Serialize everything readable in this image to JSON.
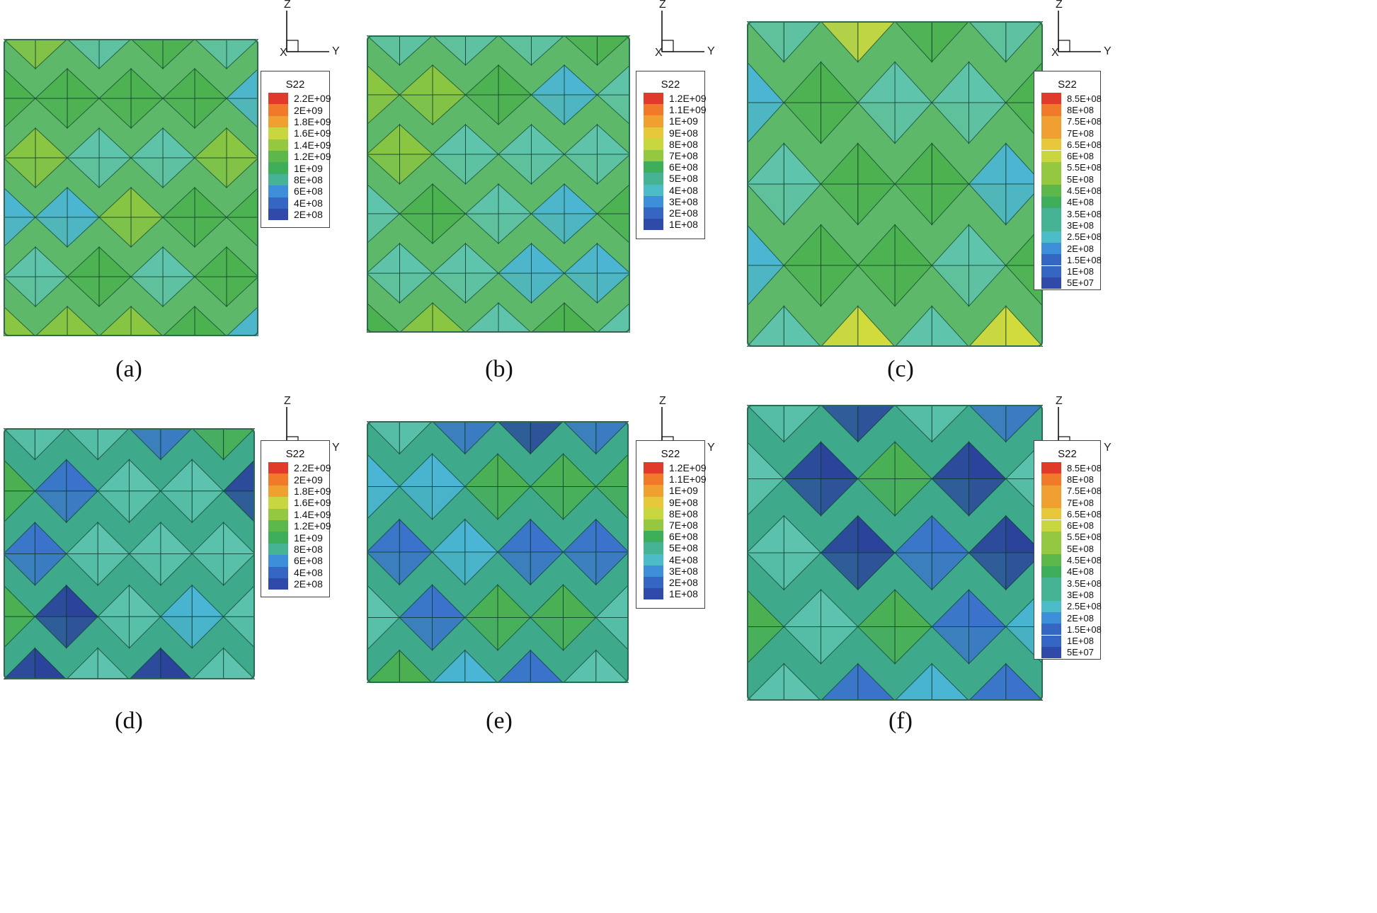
{
  "axes_labels": {
    "z": "Z",
    "y": "Y",
    "x": "X"
  },
  "panels": [
    {
      "caption": "(a)",
      "legend_title": "S22",
      "legend_levels": [
        "2.2E+09",
        "2E+09",
        "1.8E+09",
        "1.6E+09",
        "1.4E+09",
        "1.2E+09",
        "1E+09",
        "8E+08",
        "6E+08",
        "4E+08",
        "2E+08"
      ]
    },
    {
      "caption": "(b)",
      "legend_title": "S22",
      "legend_levels": [
        "1.2E+09",
        "1.1E+09",
        "1E+09",
        "9E+08",
        "8E+08",
        "7E+08",
        "6E+08",
        "5E+08",
        "4E+08",
        "3E+08",
        "2E+08",
        "1E+08"
      ]
    },
    {
      "caption": "(c)",
      "legend_title": "S22",
      "legend_levels": [
        "8.5E+08",
        "8E+08",
        "7.5E+08",
        "7E+08",
        "6.5E+08",
        "6E+08",
        "5.5E+08",
        "5E+08",
        "4.5E+08",
        "4E+08",
        "3.5E+08",
        "3E+08",
        "2.5E+08",
        "2E+08",
        "1.5E+08",
        "1E+08",
        "5E+07"
      ]
    },
    {
      "caption": "(d)",
      "legend_title": "S22",
      "legend_levels": [
        "2.2E+09",
        "2E+09",
        "1.8E+09",
        "1.6E+09",
        "1.4E+09",
        "1.2E+09",
        "1E+09",
        "8E+08",
        "6E+08",
        "4E+08",
        "2E+08"
      ]
    },
    {
      "caption": "(e)",
      "legend_title": "S22",
      "legend_levels": [
        "1.2E+09",
        "1.1E+09",
        "1E+09",
        "9E+08",
        "8E+08",
        "7E+08",
        "6E+08",
        "5E+08",
        "4E+08",
        "3E+08",
        "2E+08",
        "1E+08"
      ]
    },
    {
      "caption": "(f)",
      "legend_title": "S22",
      "legend_levels": [
        "8.5E+08",
        "8E+08",
        "7.5E+08",
        "7E+08",
        "6.5E+08",
        "6E+08",
        "5.5E+08",
        "5E+08",
        "4.5E+08",
        "4E+08",
        "3.5E+08",
        "3E+08",
        "2.5E+08",
        "2E+08",
        "1.5E+08",
        "1E+08",
        "5E+07"
      ]
    }
  ],
  "colors": {
    "dark_blue": "#2a3d9c",
    "blue": "#3a6fd0",
    "light_blue": "#4bb5d8",
    "teal": "#5fc4b0",
    "green": "#4bb04e",
    "light_green": "#8cc63f",
    "yellow": "#d8dc3a",
    "orange": "#f0a030",
    "red": "#e03a2a"
  }
}
